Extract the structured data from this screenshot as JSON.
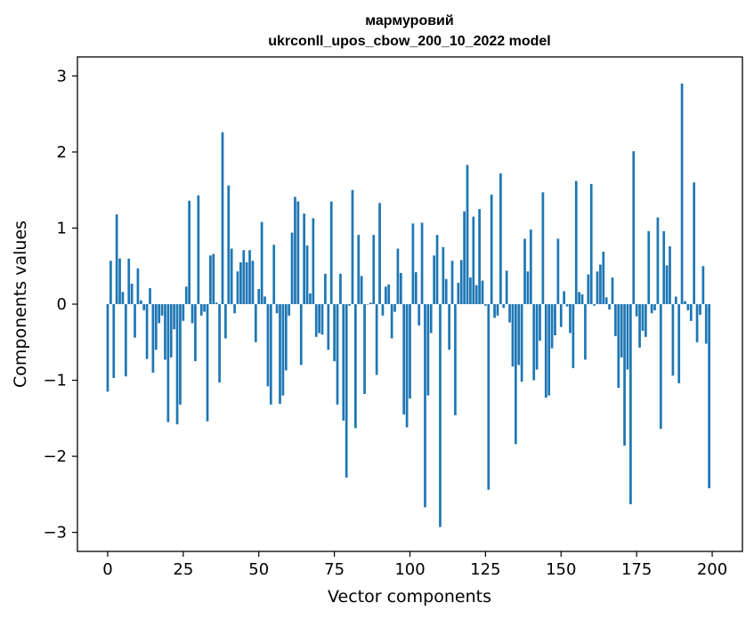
{
  "chart_data": {
    "type": "bar",
    "title_line1": "мармуровий",
    "title_line2": "ukrconll_upos_cbow_200_10_2022 model",
    "xlabel": "Vector components",
    "ylabel": "Components values",
    "xlim": [
      -10,
      210
    ],
    "ylim": [
      -3.25,
      3.25
    ],
    "xticks": [
      0,
      25,
      50,
      75,
      100,
      125,
      150,
      175,
      200
    ],
    "xtick_labels": [
      "0",
      "25",
      "50",
      "75",
      "100",
      "125",
      "150",
      "175",
      "200"
    ],
    "yticks": [
      3,
      2,
      1,
      0,
      -1,
      -2,
      -3
    ],
    "ytick_labels": [
      "3",
      "2",
      "1",
      "0",
      "−1",
      "−2",
      "−3"
    ],
    "color": "#1f77b4",
    "values": [
      -1.15,
      0.57,
      -0.97,
      1.18,
      0.6,
      0.16,
      -0.95,
      0.6,
      0.27,
      -0.44,
      0.47,
      0.05,
      -0.08,
      -0.72,
      0.21,
      -0.9,
      -0.6,
      -0.25,
      -0.15,
      -0.73,
      -1.55,
      -0.7,
      -0.33,
      -1.58,
      -1.32,
      -0.22,
      0.23,
      1.36,
      -0.25,
      -0.75,
      1.43,
      -0.15,
      -0.1,
      -1.54,
      0.64,
      0.66,
      0.02,
      -1.03,
      2.26,
      -0.45,
      1.56,
      0.73,
      -0.12,
      0.43,
      0.55,
      0.71,
      0.55,
      0.71,
      0.57,
      -0.5,
      0.2,
      1.08,
      0.1,
      -1.08,
      -1.32,
      0.78,
      -0.12,
      -1.31,
      -1.2,
      -0.87,
      -0.15,
      0.94,
      1.41,
      1.35,
      -0.8,
      1.19,
      0.77,
      0.14,
      1.13,
      -0.43,
      -0.38,
      -0.4,
      0.4,
      -0.6,
      1.35,
      -0.75,
      -1.32,
      0.4,
      -1.53,
      -2.28,
      -0.02,
      1.5,
      -1.63,
      0.91,
      0.37,
      -1.18,
      0.0,
      0.02,
      0.91,
      -0.93,
      1.33,
      -0.15,
      0.23,
      0.26,
      -0.45,
      -0.1,
      0.73,
      0.41,
      -1.45,
      -1.62,
      -1.24,
      1.06,
      0.42,
      -0.28,
      1.07,
      -2.67,
      -1.2,
      -0.38,
      0.64,
      0.91,
      -2.93,
      0.75,
      0.33,
      -0.6,
      0.57,
      -1.46,
      0.28,
      0.58,
      1.22,
      1.83,
      0.35,
      1.15,
      0.25,
      1.25,
      0.31,
      -0.02,
      -2.44,
      1.44,
      -0.18,
      -0.15,
      1.72,
      -0.05,
      0.44,
      -0.24,
      -0.82,
      -1.84,
      -0.8,
      -1.02,
      0.86,
      0.43,
      0.98,
      -1.0,
      -0.86,
      -0.48,
      1.47,
      -1.23,
      -1.2,
      -0.58,
      -0.41,
      0.86,
      -0.3,
      0.17,
      -0.03,
      -0.38,
      -0.84,
      1.62,
      0.16,
      0.13,
      -0.73,
      0.39,
      1.58,
      -0.02,
      0.43,
      0.52,
      0.69,
      0.09,
      -0.07,
      0.35,
      -0.42,
      -1.1,
      -0.7,
      -1.86,
      -0.86,
      -2.63,
      2.01,
      -0.16,
      -0.57,
      -0.35,
      -0.43,
      0.96,
      -0.12,
      -0.08,
      1.14,
      -1.64,
      0.96,
      0.51,
      0.76,
      -0.94,
      0.1,
      -1.04,
      2.9,
      0.04,
      -0.08,
      -0.22,
      1.6,
      -0.5,
      -0.14,
      0.5,
      -0.52,
      -2.42
    ]
  }
}
